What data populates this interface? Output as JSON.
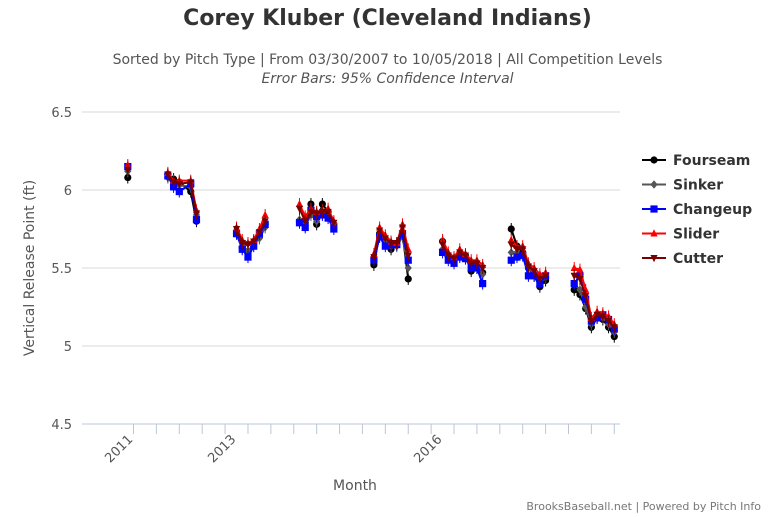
{
  "chart_data": {
    "type": "line",
    "title": "Corey Kluber (Cleveland Indians)",
    "subtitle": "Sorted by Pitch Type | From 03/30/2007 to 10/05/2018 | All Competition Levels",
    "subtitle2": "Error Bars: 95% Confidence Interval",
    "xlabel": "Month",
    "ylabel": "Vertical Release Point (ft)",
    "ylim": [
      4.5,
      6.5
    ],
    "yticks": [
      "6.5",
      "6",
      "5.5",
      "5",
      "4.5"
    ],
    "xticks": [
      "2011",
      "2013",
      "2016"
    ],
    "x": [
      "2011-09",
      "2012-04",
      "2012-05",
      "2012-06",
      "2012-08",
      "2012-09",
      "2013-04",
      "2013-05",
      "2013-06",
      "2013-07",
      "2013-08",
      "2013-09",
      "2014-03",
      "2014-04",
      "2014-05",
      "2014-06",
      "2014-07",
      "2014-08",
      "2014-09",
      "2015-04",
      "2015-05",
      "2015-06",
      "2015-07",
      "2015-08",
      "2015-09",
      "2015-10",
      "2016-04",
      "2016-05",
      "2016-06",
      "2016-07",
      "2016-08",
      "2016-09",
      "2016-10",
      "2016-11",
      "2017-04",
      "2017-05",
      "2017-06",
      "2017-07",
      "2017-08",
      "2017-09",
      "2017-10",
      "2018-03",
      "2018-04",
      "2018-05",
      "2018-06",
      "2018-07",
      "2018-08",
      "2018-09",
      "2018-10"
    ],
    "series": [
      {
        "name": "Fourseam",
        "color": "#000000",
        "marker": "circle",
        "values": [
          6.08,
          6.1,
          6.07,
          6.05,
          5.99,
          5.8,
          5.72,
          5.63,
          5.6,
          5.66,
          5.7,
          5.78,
          5.8,
          5.79,
          5.91,
          5.78,
          5.91,
          5.86,
          5.78,
          5.52,
          5.72,
          5.67,
          5.62,
          5.65,
          5.72,
          5.43,
          5.67,
          5.58,
          5.55,
          5.58,
          5.58,
          5.48,
          5.5,
          5.47,
          5.75,
          5.64,
          5.6,
          5.5,
          5.45,
          5.38,
          5.42,
          5.36,
          5.33,
          5.24,
          5.12,
          5.18,
          5.17,
          5.12,
          5.06
        ]
      },
      {
        "name": "Sinker",
        "color": "#555555",
        "marker": "diamond",
        "values": [
          6.12,
          6.08,
          6.05,
          6.03,
          6.02,
          5.84,
          5.74,
          5.64,
          5.61,
          5.65,
          5.69,
          5.76,
          5.81,
          5.77,
          5.84,
          5.8,
          5.85,
          5.83,
          5.77,
          5.55,
          5.7,
          5.66,
          5.64,
          5.64,
          5.7,
          5.5,
          5.62,
          5.58,
          5.56,
          5.58,
          5.57,
          5.52,
          5.52,
          5.46,
          5.6,
          5.6,
          5.58,
          5.5,
          5.46,
          5.4,
          5.44,
          5.4,
          5.36,
          5.25,
          5.14,
          5.19,
          5.18,
          5.14,
          5.09
        ]
      },
      {
        "name": "Changeup",
        "color": "#0000ff",
        "marker": "square",
        "values": [
          6.15,
          6.09,
          6.02,
          5.99,
          6.04,
          5.81,
          5.72,
          5.62,
          5.57,
          5.64,
          5.72,
          5.78,
          5.79,
          5.76,
          5.87,
          5.83,
          5.84,
          5.82,
          5.75,
          5.55,
          5.7,
          5.64,
          5.65,
          5.65,
          5.72,
          5.55,
          5.6,
          5.55,
          5.53,
          5.57,
          5.56,
          5.5,
          5.5,
          5.4,
          5.55,
          5.57,
          5.58,
          5.45,
          5.45,
          5.4,
          5.45,
          5.4,
          5.45,
          5.3,
          5.16,
          5.18,
          5.2,
          5.17,
          5.11
        ]
      },
      {
        "name": "Slider",
        "color": "#ff0000",
        "marker": "triangle",
        "values": [
          6.16,
          6.11,
          6.06,
          6.06,
          6.06,
          5.87,
          5.76,
          5.68,
          5.66,
          5.68,
          5.75,
          5.84,
          5.91,
          5.83,
          5.88,
          5.86,
          5.87,
          5.88,
          5.8,
          5.59,
          5.76,
          5.71,
          5.67,
          5.66,
          5.78,
          5.62,
          5.68,
          5.6,
          5.57,
          5.62,
          5.59,
          5.55,
          5.55,
          5.52,
          5.68,
          5.64,
          5.64,
          5.53,
          5.5,
          5.46,
          5.47,
          5.5,
          5.49,
          5.36,
          5.18,
          5.22,
          5.21,
          5.19,
          5.14
        ]
      },
      {
        "name": "Cutter",
        "color": "#7a0000",
        "marker": "triangle-down",
        "values": [
          6.13,
          6.1,
          6.05,
          6.04,
          6.05,
          5.85,
          5.75,
          5.66,
          5.65,
          5.67,
          5.73,
          5.8,
          5.88,
          5.8,
          5.86,
          5.85,
          5.86,
          5.86,
          5.79,
          5.57,
          5.74,
          5.69,
          5.66,
          5.66,
          5.76,
          5.58,
          5.65,
          5.58,
          5.56,
          5.6,
          5.58,
          5.53,
          5.53,
          5.5,
          5.65,
          5.62,
          5.62,
          5.51,
          5.48,
          5.43,
          5.45,
          5.45,
          5.43,
          5.32,
          5.16,
          5.2,
          5.19,
          5.16,
          5.12
        ]
      }
    ],
    "legend": [
      "Fourseam",
      "Sinker",
      "Changeup",
      "Slider",
      "Cutter"
    ],
    "legend_position": "right",
    "grid": true,
    "credits": "BrooksBaseball.net | Powered by Pitch Info"
  }
}
